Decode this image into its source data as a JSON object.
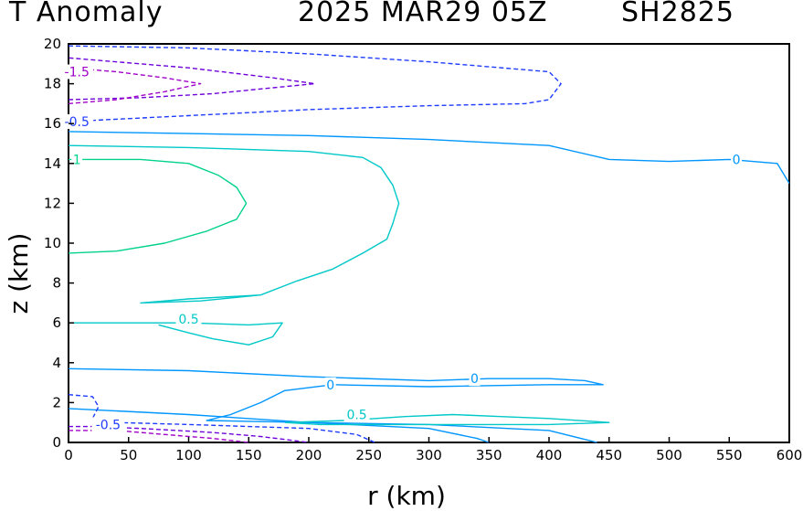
{
  "header": {
    "variable": "T Anomaly",
    "datetime": "2025 MAR29 05Z",
    "storm": "SH2825"
  },
  "chart_data": {
    "type": "contour",
    "xlabel": "r (km)",
    "ylabel": "z (km)",
    "xlim": [
      0,
      600
    ],
    "ylim": [
      0,
      20
    ],
    "xticks": [
      0,
      50,
      100,
      150,
      200,
      250,
      300,
      350,
      400,
      450,
      500,
      550,
      600
    ],
    "yticks": [
      0,
      2,
      4,
      6,
      8,
      10,
      12,
      14,
      16,
      18,
      20
    ],
    "grid": false,
    "levels": [
      {
        "value": -1.5,
        "color": "#a000c8",
        "dashed": true
      },
      {
        "value": -1.0,
        "color": "#6e00dc",
        "dashed": true
      },
      {
        "value": -0.5,
        "color": "#1e3cff",
        "dashed": true
      },
      {
        "value": 0,
        "color": "#0096ff",
        "dashed": false
      },
      {
        "value": 0.5,
        "color": "#00c8c8",
        "dashed": false
      },
      {
        "value": 1,
        "color": "#00d28c",
        "dashed": false
      }
    ],
    "contours": [
      {
        "level": 0,
        "points": [
          [
            0,
            15.6
          ],
          [
            100,
            15.5
          ],
          [
            200,
            15.4
          ],
          [
            300,
            15.2
          ],
          [
            400,
            14.9
          ],
          [
            450,
            14.2
          ],
          [
            500,
            14.1
          ],
          [
            550,
            14.2
          ],
          [
            590,
            14.0
          ],
          [
            600,
            13.0
          ]
        ]
      },
      {
        "level": 0,
        "points": [
          [
            0,
            3.7
          ],
          [
            100,
            3.6
          ],
          [
            200,
            3.3
          ],
          [
            300,
            3.1
          ],
          [
            350,
            3.2
          ],
          [
            400,
            3.2
          ],
          [
            430,
            3.1
          ],
          [
            445,
            2.9
          ],
          [
            400,
            2.9
          ],
          [
            300,
            2.8
          ],
          [
            220,
            2.9
          ],
          [
            180,
            2.6
          ],
          [
            160,
            2.0
          ],
          [
            135,
            1.4
          ],
          [
            115,
            1.1
          ],
          [
            200,
            1.0
          ],
          [
            300,
            0.9
          ],
          [
            400,
            0.6
          ],
          [
            440,
            0.0
          ]
        ]
      },
      {
        "level": 0,
        "points": [
          [
            0,
            1.7
          ],
          [
            100,
            1.4
          ],
          [
            200,
            1.0
          ],
          [
            300,
            0.7
          ],
          [
            340,
            0.2
          ],
          [
            350,
            0.0
          ]
        ]
      },
      {
        "level": 0.5,
        "points": [
          [
            0,
            6.0
          ],
          [
            100,
            6.0
          ],
          [
            150,
            5.9
          ],
          [
            178,
            6.0
          ],
          [
            170,
            5.3
          ],
          [
            150,
            4.9
          ],
          [
            120,
            5.2
          ],
          [
            100,
            5.5
          ],
          [
            75,
            5.9
          ]
        ]
      },
      {
        "level": 0.5,
        "points": [
          [
            0,
            14.9
          ],
          [
            100,
            14.8
          ],
          [
            200,
            14.6
          ],
          [
            245,
            14.3
          ],
          [
            260,
            13.8
          ],
          [
            270,
            12.9
          ],
          [
            275,
            12.0
          ],
          [
            270,
            11.0
          ],
          [
            265,
            10.2
          ],
          [
            245,
            9.5
          ],
          [
            220,
            8.7
          ],
          [
            190,
            8.1
          ],
          [
            160,
            7.4
          ],
          [
            110,
            7.1
          ],
          [
            60,
            7.0
          ],
          [
            100,
            7.2
          ],
          [
            160,
            7.4
          ]
        ]
      },
      {
        "level": 0.5,
        "points": [
          [
            180,
            1.0
          ],
          [
            230,
            1.1
          ],
          [
            280,
            1.3
          ],
          [
            320,
            1.4
          ],
          [
            360,
            1.3
          ],
          [
            400,
            1.2
          ],
          [
            450,
            1.0
          ],
          [
            400,
            0.9
          ],
          [
            330,
            0.9
          ],
          [
            260,
            0.9
          ],
          [
            210,
            0.9
          ],
          [
            180,
            1.0
          ]
        ]
      },
      {
        "level": 1,
        "points": [
          [
            0,
            14.2
          ],
          [
            60,
            14.2
          ],
          [
            100,
            14.0
          ],
          [
            125,
            13.4
          ],
          [
            140,
            12.8
          ],
          [
            148,
            12.0
          ],
          [
            140,
            11.2
          ],
          [
            115,
            10.6
          ],
          [
            80,
            10.0
          ],
          [
            40,
            9.6
          ],
          [
            0,
            9.5
          ]
        ]
      },
      {
        "level": -0.5,
        "points": [
          [
            0,
            19.9
          ],
          [
            100,
            19.8
          ],
          [
            200,
            19.5
          ],
          [
            300,
            19.1
          ],
          [
            400,
            18.6
          ],
          [
            410,
            18.0
          ],
          [
            400,
            17.2
          ],
          [
            380,
            17.0
          ],
          [
            300,
            16.9
          ],
          [
            200,
            16.7
          ],
          [
            100,
            16.4
          ],
          [
            0,
            16.1
          ]
        ]
      },
      {
        "level": -0.5,
        "points": [
          [
            0,
            2.4
          ],
          [
            20,
            2.3
          ],
          [
            25,
            1.8
          ],
          [
            20,
            1.2
          ],
          [
            40,
            1.0
          ],
          [
            100,
            0.9
          ],
          [
            200,
            0.7
          ],
          [
            240,
            0.4
          ],
          [
            255,
            0.0
          ]
        ]
      },
      {
        "level": -1.0,
        "points": [
          [
            0,
            17.2
          ],
          [
            60,
            17.3
          ],
          [
            120,
            17.5
          ],
          [
            170,
            17.8
          ],
          [
            205,
            18.0
          ],
          [
            170,
            18.3
          ],
          [
            100,
            18.8
          ],
          [
            0,
            19.3
          ]
        ]
      },
      {
        "level": -1.0,
        "points": [
          [
            0,
            0.8
          ],
          [
            20,
            0.8
          ],
          [
            60,
            0.7
          ],
          [
            120,
            0.5
          ],
          [
            160,
            0.3
          ],
          [
            200,
            0.0
          ]
        ]
      },
      {
        "level": -1.5,
        "points": [
          [
            0,
            17.0
          ],
          [
            40,
            17.2
          ],
          [
            80,
            17.6
          ],
          [
            110,
            18.0
          ],
          [
            80,
            18.3
          ],
          [
            40,
            18.6
          ],
          [
            0,
            18.8
          ]
        ]
      },
      {
        "level": -1.5,
        "points": [
          [
            0,
            0.6
          ],
          [
            40,
            0.6
          ],
          [
            80,
            0.4
          ],
          [
            120,
            0.2
          ],
          [
            150,
            0.0
          ]
        ]
      }
    ],
    "labels": [
      {
        "text": "-1.5",
        "level": -1.5,
        "x": 7,
        "y": 18.6
      },
      {
        "text": "-0.5",
        "level": -0.5,
        "x": 7,
        "y": 16.1
      },
      {
        "text": "1",
        "level": 1,
        "x": 7,
        "y": 14.2
      },
      {
        "text": "0",
        "level": 0,
        "x": 556,
        "y": 14.2
      },
      {
        "text": "0.5",
        "level": 0.5,
        "x": 100,
        "y": 6.2
      },
      {
        "text": "0",
        "level": 0,
        "x": 218,
        "y": 2.9
      },
      {
        "text": "0",
        "level": 0,
        "x": 338,
        "y": 3.2
      },
      {
        "text": "0.5",
        "level": 0.5,
        "x": 240,
        "y": 1.4
      },
      {
        "text": "-0.5",
        "level": -0.5,
        "x": 33,
        "y": 0.9
      }
    ]
  }
}
